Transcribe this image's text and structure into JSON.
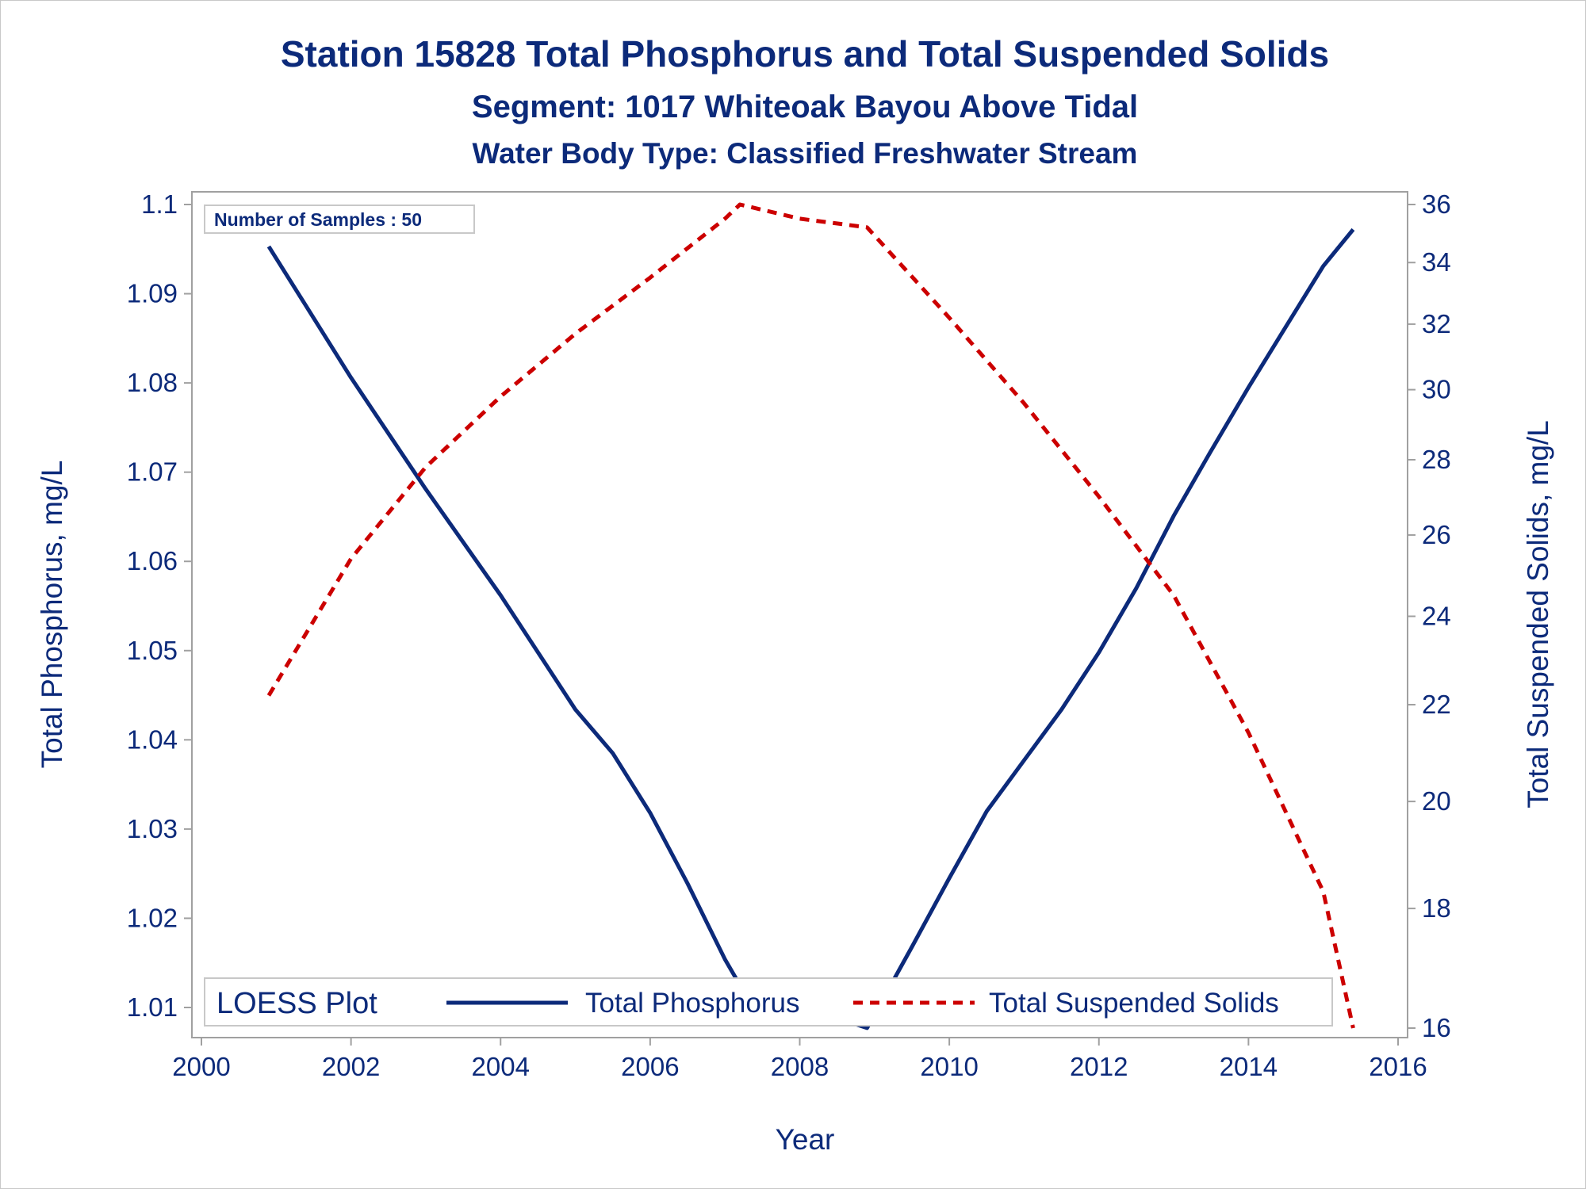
{
  "title": "Station 15828  Total Phosphorus and Total Suspended Solids",
  "subtitle1": "Segment: 1017  Whiteoak Bayou Above Tidal",
  "subtitle2": "Water Body Type: Classified Freshwater Stream",
  "inset_label": "Number of Samples : 50",
  "legend": {
    "title": "LOESS Plot",
    "items": [
      "Total Phosphorus",
      "Total Suspended Solids"
    ]
  },
  "colors": {
    "phosphorus": "#0c2a7a",
    "solids": "#cc0000",
    "text": "#0c2a7a",
    "frame": "#a0a0a0"
  },
  "chart_data": {
    "type": "line",
    "xlabel": "Year",
    "ylabel": "Total Phosphorus, mg/L",
    "y2label": "Total Suspended Solids, mg/L",
    "xlim": [
      2000,
      2016
    ],
    "ylim": [
      1.0064,
      1.1
    ],
    "y2lim": [
      16,
      36
    ],
    "y2scale": "log",
    "x_ticks": [
      2000,
      2002,
      2004,
      2006,
      2008,
      2010,
      2012,
      2014,
      2016
    ],
    "y_ticks": [
      1.01,
      1.02,
      1.03,
      1.04,
      1.05,
      1.06,
      1.07,
      1.08,
      1.09,
      1.1
    ],
    "y_tick_labels": [
      "1.01",
      "1.02",
      "1.03",
      "1.04",
      "1.05",
      "1.06",
      "1.07",
      "1.08",
      "1.09",
      "1.1"
    ],
    "y2_ticks": [
      16,
      18,
      20,
      22,
      24,
      26,
      28,
      30,
      32,
      34,
      36
    ],
    "grid": false,
    "legend_position": "bottom-inside",
    "series": [
      {
        "name": "Total Phosphorus",
        "axis": "left",
        "style": "solid",
        "x": [
          2000.9,
          2002.0,
          2003.0,
          2004.0,
          2005.0,
          2005.5,
          2006.0,
          2006.5,
          2007.0,
          2007.2,
          2007.6,
          2008.0,
          2008.5,
          2008.9,
          2009.5,
          2010.0,
          2010.5,
          2011.0,
          2011.5,
          2012.0,
          2012.5,
          2013.0,
          2013.5,
          2014.0,
          2014.5,
          2015.0,
          2015.4
        ],
        "y": [
          1.0953,
          1.0806,
          1.0681,
          1.0562,
          1.0434,
          1.0385,
          1.0318,
          1.0239,
          1.0154,
          1.0125,
          1.0113,
          1.0102,
          1.0088,
          1.0077,
          1.0168,
          1.0245,
          1.032,
          1.0377,
          1.0434,
          1.0498,
          1.057,
          1.0651,
          1.0724,
          1.0795,
          1.0863,
          1.0931,
          1.0972
        ]
      },
      {
        "name": "Total Suspended Solids",
        "axis": "right",
        "style": "dashed",
        "x": [
          2000.9,
          2002.0,
          2003.0,
          2004.0,
          2005.0,
          2006.0,
          2007.0,
          2007.2,
          2008.0,
          2008.9,
          2010.0,
          2011.0,
          2012.0,
          2013.0,
          2014.0,
          2015.0,
          2015.4
        ],
        "y": [
          22.2,
          25.4,
          27.8,
          29.8,
          31.7,
          33.5,
          35.5,
          36.0,
          35.5,
          35.2,
          32.2,
          29.6,
          27.0,
          24.5,
          21.4,
          18.3,
          16.0
        ]
      }
    ]
  }
}
